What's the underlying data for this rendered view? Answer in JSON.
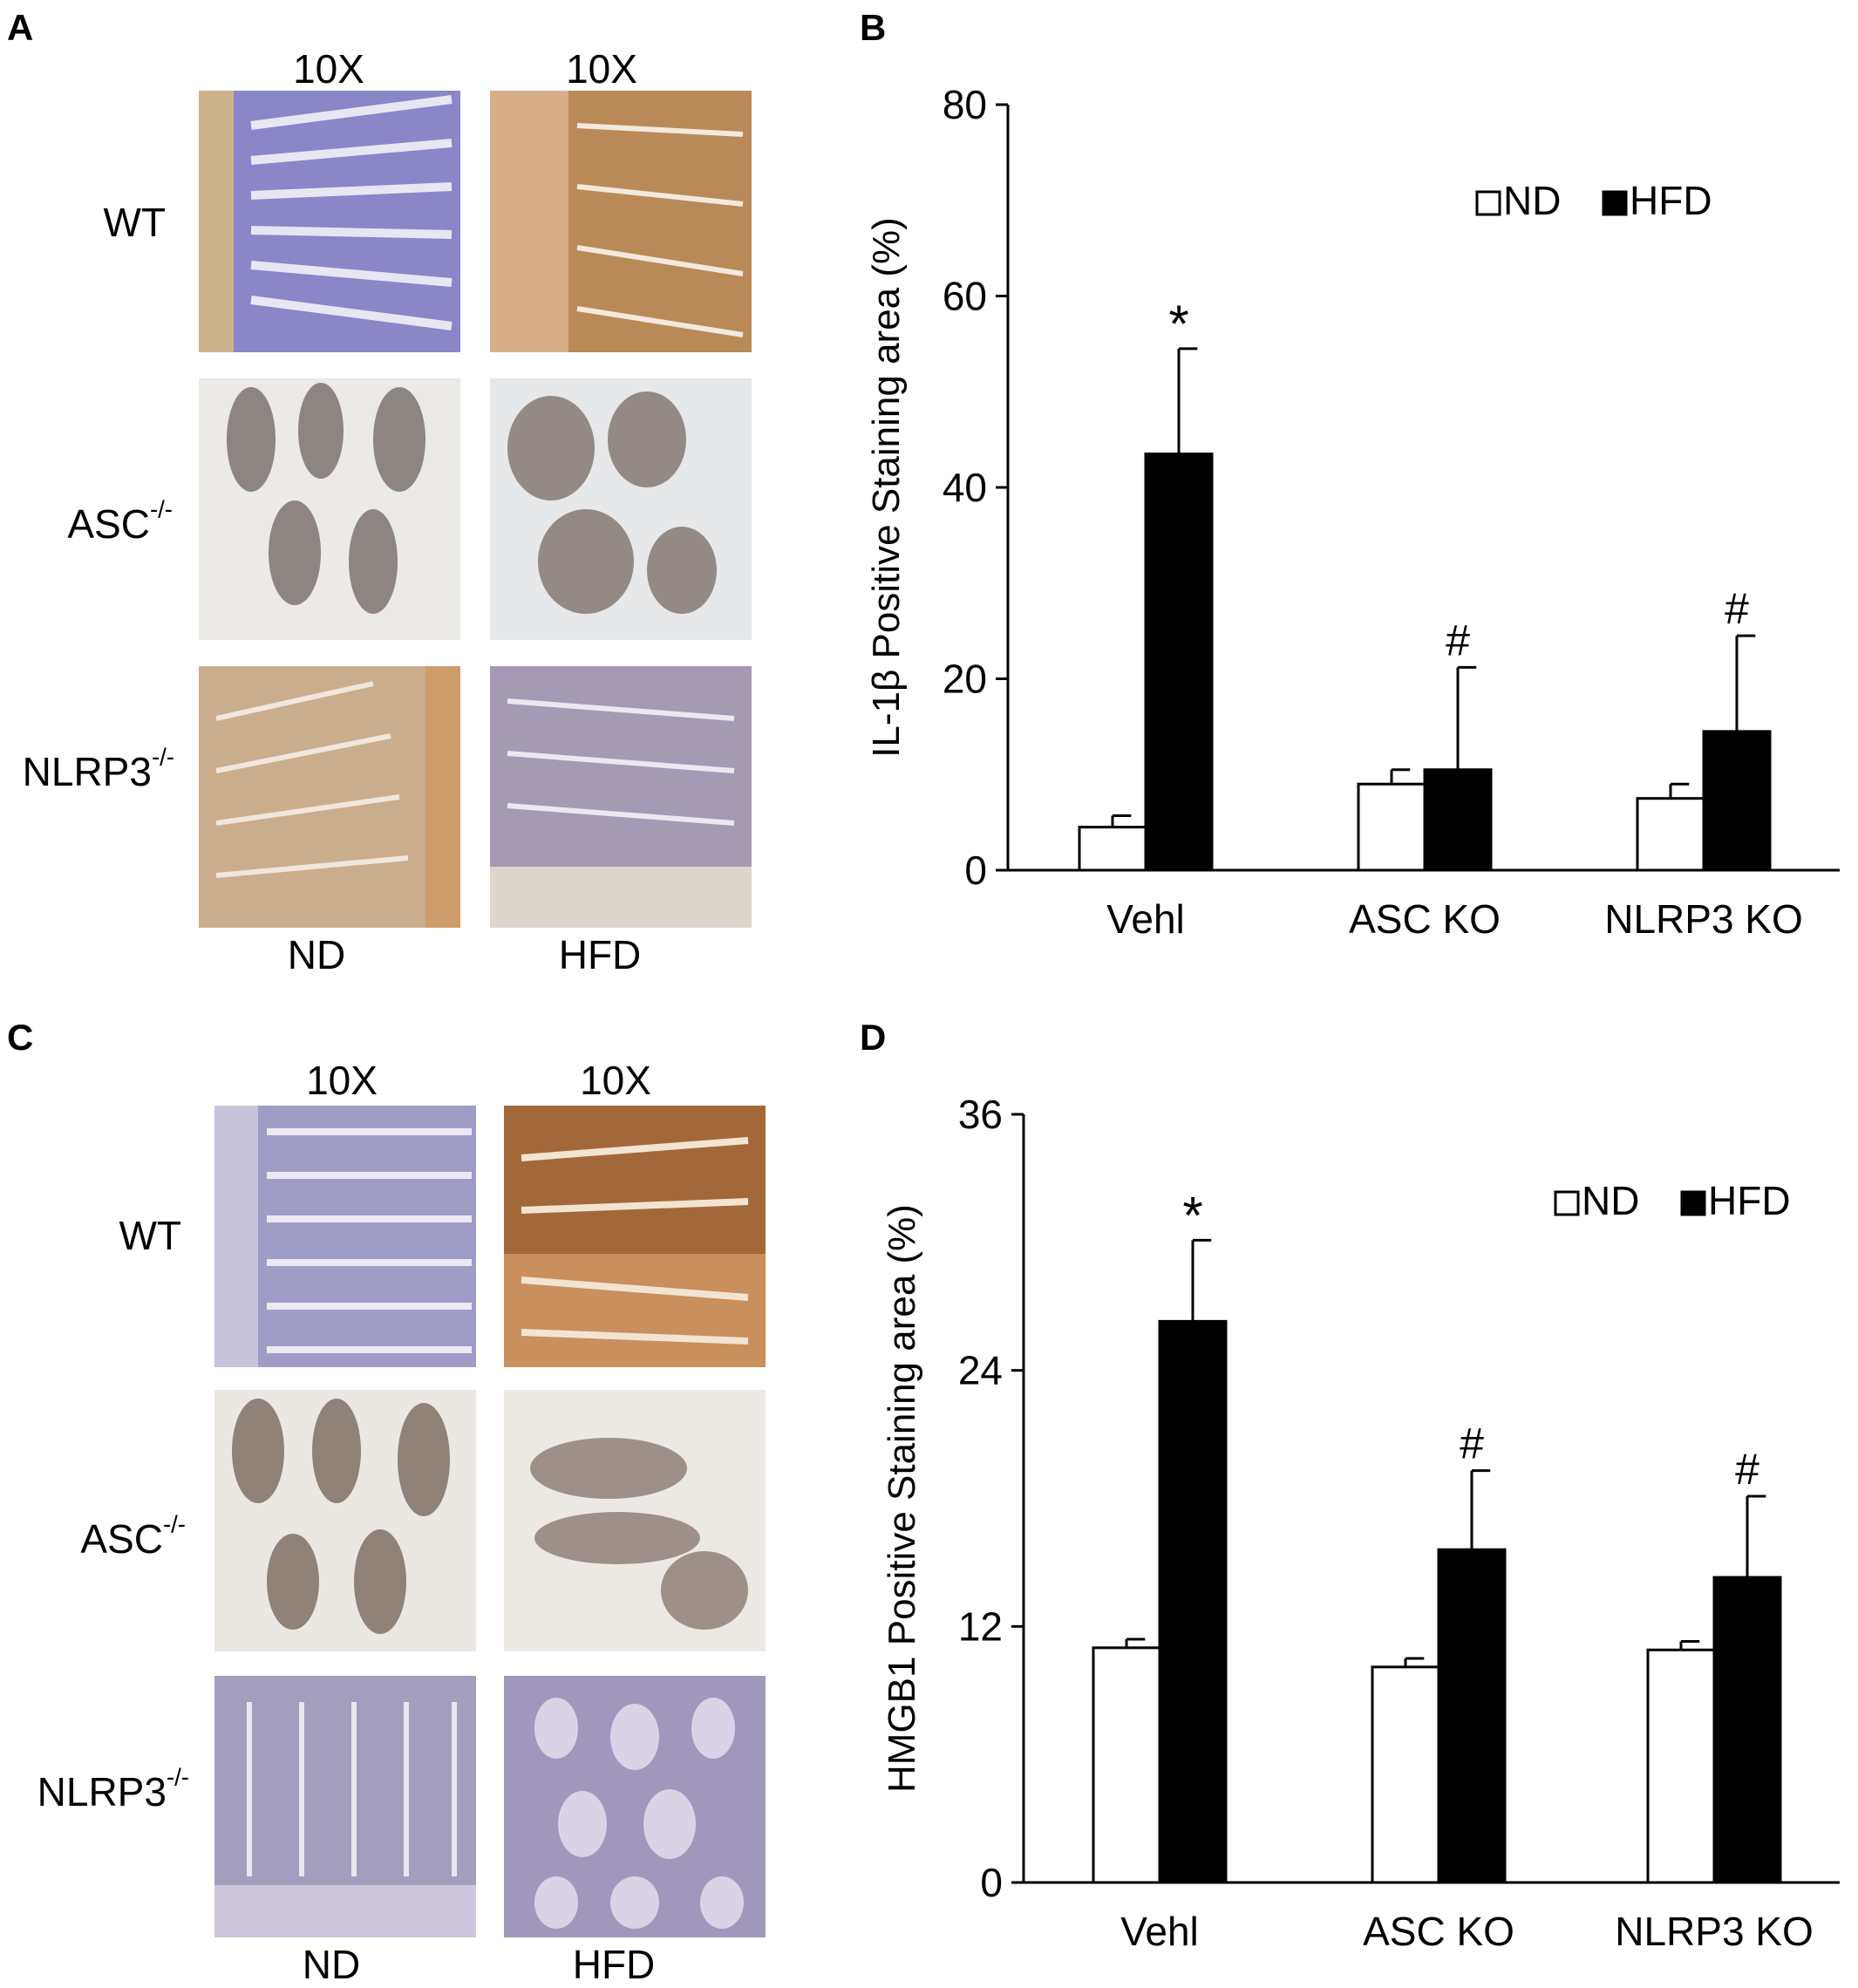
{
  "panels": {
    "A": {
      "label": "A",
      "magnification": [
        "10X",
        "10X"
      ],
      "rows": [
        {
          "label": "WT",
          "sup": ""
        },
        {
          "label": "ASC",
          "sup": "-/-"
        },
        {
          "label": "NLRP3",
          "sup": "-/-"
        }
      ],
      "columns": [
        "ND",
        "HFD"
      ],
      "images": [
        [
          "blue-villi",
          "brown-tissue"
        ],
        [
          "gray-villi",
          "gray-villi"
        ],
        [
          "tan-villi",
          "gray-muscle"
        ]
      ]
    },
    "B": {
      "label": "B"
    },
    "C": {
      "label": "C",
      "magnification": [
        "10X",
        "10X"
      ],
      "rows": [
        {
          "label": "WT",
          "sup": ""
        },
        {
          "label": "ASC",
          "sup": "-/-"
        },
        {
          "label": "NLRP3",
          "sup": "-/-"
        }
      ],
      "columns": [
        "ND",
        "HFD"
      ],
      "images": [
        [
          "blue-villi",
          "brown-villi"
        ],
        [
          "gray-villi",
          "gray-villi"
        ],
        [
          "purple-villi",
          "purple-villi"
        ]
      ]
    },
    "D": {
      "label": "D"
    }
  },
  "colors": {
    "ND": "#ffffff",
    "HFD": "#000000",
    "axis": "#000000"
  },
  "chart_data": [
    {
      "panel": "B",
      "type": "bar",
      "title": "",
      "xlabel": "",
      "ylabel": "IL-1β Positive Staining area (%)",
      "ylim": [
        0,
        80
      ],
      "yticks": [
        0,
        20,
        40,
        60,
        80
      ],
      "categories": [
        "Vehl",
        "ASC KO",
        "NLRP3 KO"
      ],
      "series": [
        {
          "name": "ND",
          "values": [
            4.5,
            9.0,
            7.5
          ],
          "errors": [
            1.2,
            1.5,
            1.5
          ]
        },
        {
          "name": "HFD",
          "values": [
            43.5,
            10.5,
            14.5
          ],
          "errors": [
            11.0,
            10.7,
            10.0
          ]
        }
      ],
      "annotations": [
        "*",
        "#",
        "#"
      ],
      "legend": "top-right",
      "grid": false
    },
    {
      "panel": "D",
      "type": "bar",
      "title": "",
      "xlabel": "",
      "ylabel": "HMGB1 Positive Staining area (%)",
      "ylim": [
        0,
        36
      ],
      "yticks": [
        0,
        12,
        24,
        36
      ],
      "categories": [
        "Vehl",
        "ASC KO",
        "NLRP3 KO"
      ],
      "series": [
        {
          "name": "ND",
          "values": [
            11.0,
            10.1,
            10.9
          ],
          "errors": [
            0.4,
            0.4,
            0.4
          ]
        },
        {
          "name": "HFD",
          "values": [
            26.3,
            15.6,
            14.3
          ],
          "errors": [
            3.8,
            3.7,
            3.8
          ]
        }
      ],
      "annotations": [
        "*",
        "#",
        "#"
      ],
      "legend": "top-right",
      "grid": false
    }
  ]
}
